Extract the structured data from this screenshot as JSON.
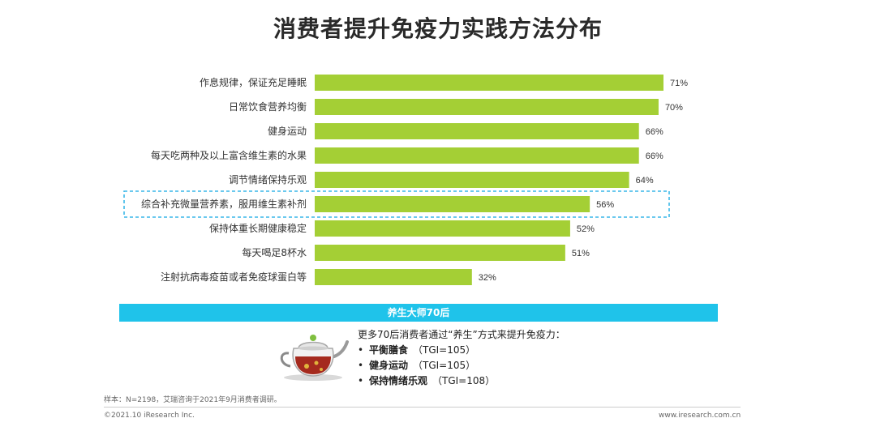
{
  "title": "消费者提升免疫力实践方法分布",
  "chart_data": {
    "type": "bar",
    "orientation": "horizontal",
    "title": "消费者提升免疫力实践方法分布",
    "categories": [
      "作息规律，保证充足睡眠",
      "日常饮食营养均衡",
      "健身运动",
      "每天吃两种及以上富含维生素的水果",
      "调节情绪保持乐观",
      "综合补充微量营养素，服用维生素补剂",
      "保持体重长期健康稳定",
      "每天喝足8杯水",
      "注射抗病毒疫苗或者免疫球蛋白等"
    ],
    "values": [
      71,
      70,
      66,
      66,
      64,
      56,
      52,
      51,
      32
    ],
    "value_labels": [
      "71%",
      "70%",
      "66%",
      "66%",
      "64%",
      "56%",
      "52%",
      "51%",
      "32%"
    ],
    "unit": "%",
    "xlim": [
      0,
      71
    ],
    "highlighted_category_index": 5,
    "grid": false,
    "bar_color": "#a4cf35",
    "highlight_border_color": "#3ab7e8"
  },
  "banner": {
    "label": "养生大师70后",
    "color": "#1fc3ea"
  },
  "note": {
    "intro": "更多70后消费者通过“养生”方式来提升免疫力：",
    "items": [
      {
        "bullet": "•",
        "strong": "平衡膳食",
        "tgi": "（TGI=105）"
      },
      {
        "bullet": "•",
        "strong": "健身运动",
        "tgi": "（TGI=105）"
      },
      {
        "bullet": "•",
        "strong": "保持情绪乐观",
        "tgi": "（TGI=108）"
      }
    ]
  },
  "teapot_icon": "teapot-icon",
  "footer": {
    "sample": "样本：N=2198，艾瑞咨询于2021年9月消费者调研。",
    "copyright": "©2021.10 iResearch Inc.",
    "site": "www.iresearch.com.cn"
  }
}
